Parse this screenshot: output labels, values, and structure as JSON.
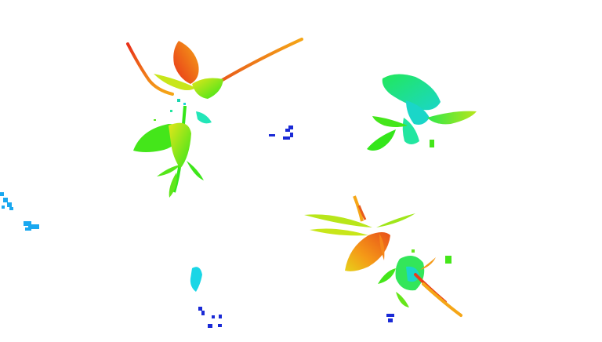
{
  "image": {
    "kind": "depth-colored point cloud of leafy plants",
    "background": "#ffffff",
    "colors": {
      "near_red": "#e8301a",
      "orange": "#f57a17",
      "yellow": "#e6e61a",
      "green": "#33e61a",
      "cyan": "#1ad6e6",
      "sky_blue": "#1aa8f0",
      "far_blue": "#1a2ad6"
    },
    "objects": [
      {
        "name": "plant-cluster",
        "count": 3
      },
      {
        "name": "noise-specks",
        "count": 6
      }
    ]
  }
}
